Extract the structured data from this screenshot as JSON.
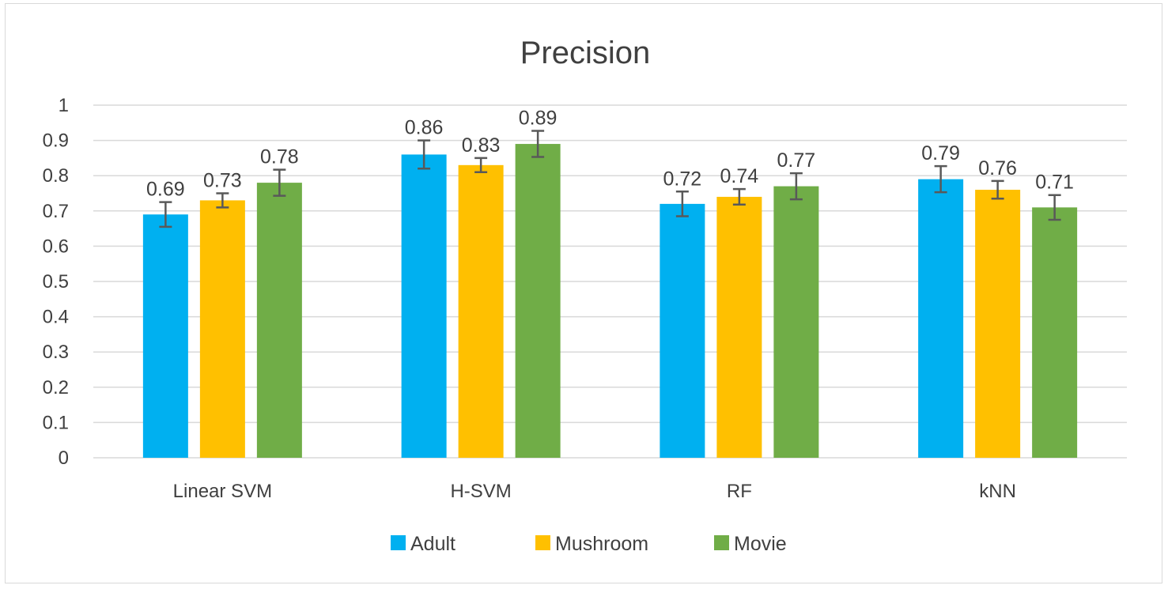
{
  "chart_data": {
    "type": "bar",
    "title": "Precision",
    "xlabel": "",
    "ylabel": "",
    "ylim": [
      0,
      1
    ],
    "ytick_step": 0.1,
    "yticks": [
      "0",
      "0.1",
      "0.2",
      "0.3",
      "0.4",
      "0.5",
      "0.6",
      "0.7",
      "0.8",
      "0.9",
      "1"
    ],
    "grid": true,
    "legend_position": "bottom",
    "categories": [
      "Linear SVM",
      "H-SVM",
      "RF",
      "kNN"
    ],
    "series": [
      {
        "name": "Adult",
        "color": "#00b0f0",
        "values": [
          0.69,
          0.86,
          0.72,
          0.79
        ],
        "labels": [
          "0.69",
          "0.86",
          "0.72",
          "0.79"
        ],
        "errors": [
          0.035,
          0.04,
          0.035,
          0.037
        ]
      },
      {
        "name": "Mushroom",
        "color": "#ffc000",
        "values": [
          0.73,
          0.83,
          0.74,
          0.76
        ],
        "labels": [
          "0.73",
          "0.83",
          "0.74",
          "0.76"
        ],
        "errors": [
          0.02,
          0.02,
          0.022,
          0.025
        ]
      },
      {
        "name": "Movie",
        "color": "#70ad47",
        "values": [
          0.78,
          0.89,
          0.77,
          0.71
        ],
        "labels": [
          "0.78",
          "0.89",
          "0.77",
          "0.71"
        ],
        "errors": [
          0.037,
          0.037,
          0.037,
          0.035
        ]
      }
    ],
    "error_bar_color": "#595959",
    "grid_color": "#d9d9d9",
    "text_color": "#404040"
  }
}
